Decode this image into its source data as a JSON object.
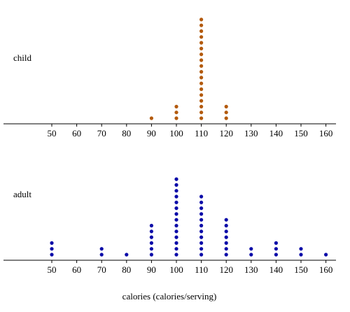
{
  "chart_data": {
    "type": "scatter",
    "subtype": "dot-plot",
    "xlabel": "calories (calories/serving)",
    "xlim": [
      40,
      160
    ],
    "xticks": [
      50,
      60,
      70,
      80,
      90,
      100,
      110,
      120,
      130,
      140,
      150,
      160
    ],
    "grid": false,
    "panels": [
      {
        "name": "child",
        "color": "#b35a0c",
        "x": [
          90,
          100,
          110,
          120
        ],
        "counts": [
          1,
          3,
          18,
          3
        ]
      },
      {
        "name": "adult",
        "color": "#0a0aa8",
        "x": [
          50,
          70,
          80,
          90,
          100,
          110,
          120,
          130,
          140,
          150,
          160
        ],
        "counts": [
          3,
          2,
          1,
          6,
          14,
          11,
          7,
          2,
          3,
          2,
          1
        ]
      }
    ]
  }
}
